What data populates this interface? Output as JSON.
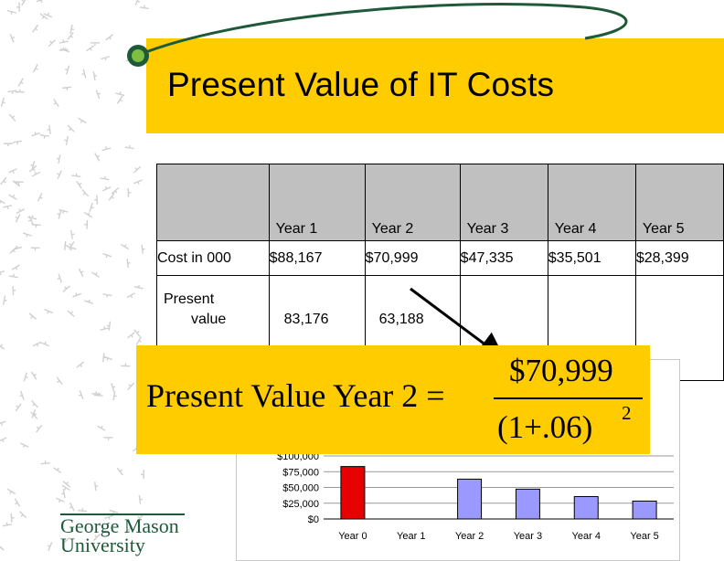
{
  "slide": {
    "title": "Present Value of IT Costs",
    "colors": {
      "band": "#ffcc00",
      "header_cell": "#c0c0c0",
      "accent_green": "#1e5a3a"
    }
  },
  "table": {
    "headers": [
      "",
      "Year 1",
      "Year 2",
      "Year 3",
      "Year 4",
      "Year 5"
    ],
    "rows": [
      {
        "label": "Cost in 000",
        "values": [
          "$88,167",
          "$70,999",
          "$47,335",
          "$35,501",
          "$28,399"
        ]
      },
      {
        "label_line1": "Present",
        "label_line2": "value",
        "values": [
          "83,176",
          "63,188",
          "",
          "",
          ""
        ]
      }
    ]
  },
  "formula": {
    "lhs": "Present Value Year 2 =",
    "numerator": "$70,999",
    "denominator": "(1+.06)",
    "exponent": "2"
  },
  "chart_data": {
    "type": "bar",
    "categories": [
      "Year 0",
      "Year 1",
      "Year 2",
      "Year 3",
      "Year 4",
      "Year 5"
    ],
    "values": [
      83176,
      0,
      63188,
      47335,
      35501,
      28399
    ],
    "bar_colors": [
      "#e60000",
      "#9999ff",
      "#9999ff",
      "#9999ff",
      "#9999ff",
      "#9999ff"
    ],
    "ytick_labels": [
      "$0",
      "$25,000",
      "$50,000",
      "$75,000",
      "$100,000"
    ],
    "ytick_values": [
      0,
      25000,
      50000,
      75000,
      100000
    ],
    "ylim": [
      0,
      100000
    ],
    "grid": true
  },
  "logo": {
    "line1": "George Mason",
    "line2": "University"
  }
}
